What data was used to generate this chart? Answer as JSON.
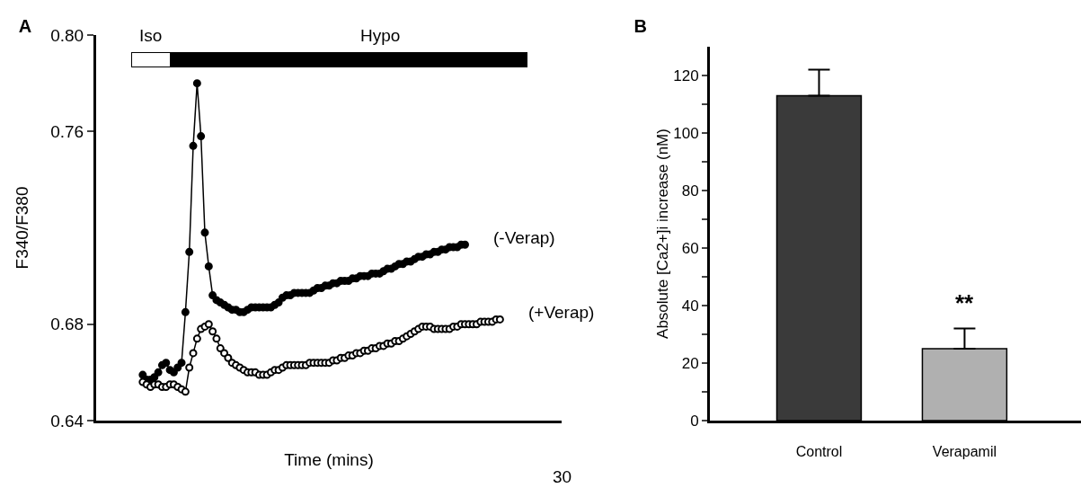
{
  "chart_data": [
    {
      "type": "line",
      "title": "A",
      "xlabel": "Time (mins)",
      "ylabel": "F340/F380",
      "marker": "circle",
      "line_style": "solid",
      "annotations": [
        "Iso",
        "Hypo",
        "30"
      ],
      "categories": [
        null,
        null,
        null,
        null,
        null,
        null,
        null,
        null,
        null,
        null,
        null,
        null,
        null,
        null,
        null,
        null,
        null,
        null,
        null,
        null,
        null,
        null,
        null,
        null,
        null,
        null,
        null,
        null,
        null,
        null,
        null,
        null,
        null,
        null,
        null,
        null,
        null,
        null,
        null,
        null,
        null,
        null,
        null,
        null,
        null,
        null,
        null,
        null,
        null,
        null,
        null,
        null,
        null,
        null,
        null,
        null,
        null,
        null,
        null,
        null,
        null,
        null,
        null,
        null,
        null,
        null,
        null,
        null,
        null,
        null,
        null,
        null,
        null,
        null,
        null,
        null,
        null,
        null,
        null,
        null,
        null,
        null,
        null,
        null,
        null,
        null,
        null,
        null,
        null,
        null,
        null,
        null,
        null
      ],
      "ylim": [
        0.64,
        0.8
      ],
      "yticks": [
        {
          "value": 0.64,
          "label": "0.64"
        },
        {
          "value": 0.68,
          "label": "0.68"
        },
        {
          "value": 0.76,
          "label": "0.76"
        },
        {
          "value": 0.8,
          "label": "0.80"
        }
      ],
      "series": [
        {
          "name": "(-Verap)",
          "color": "#000000",
          "values": [
            0.659,
            0.657,
            0.657,
            0.658,
            0.66,
            0.663,
            0.664,
            0.661,
            0.66,
            0.662,
            0.664,
            0.685,
            0.71,
            0.754,
            0.78,
            0.758,
            0.718,
            0.704,
            0.692,
            0.69,
            0.689,
            0.688,
            0.687,
            0.686,
            0.686,
            0.685,
            0.685,
            0.686,
            0.687,
            0.687,
            0.687,
            0.687,
            0.687,
            0.687,
            0.688,
            0.689,
            0.691,
            0.692,
            0.692,
            0.693,
            0.693,
            0.693,
            0.693,
            0.693,
            0.694,
            0.695,
            0.695,
            0.696,
            0.696,
            0.697,
            0.697,
            0.698,
            0.698,
            0.698,
            0.699,
            0.699,
            0.7,
            0.7,
            0.7,
            0.701,
            0.701,
            0.701,
            0.702,
            0.703,
            0.703,
            0.704,
            0.705,
            0.705,
            0.706,
            0.706,
            0.707,
            0.708,
            0.708,
            0.709,
            0.709,
            0.71,
            0.71,
            0.711,
            0.711,
            0.712,
            0.712,
            0.712,
            0.713,
            0.713,
            null,
            null,
            null,
            null,
            null,
            null,
            null,
            null,
            null
          ]
        },
        {
          "name": "(+Verap)",
          "color": "#000000",
          "values": [
            0.656,
            0.655,
            0.654,
            0.655,
            0.655,
            0.654,
            0.654,
            0.655,
            0.655,
            0.654,
            0.653,
            0.652,
            0.662,
            0.668,
            0.674,
            0.678,
            0.679,
            0.68,
            0.677,
            0.674,
            0.67,
            0.668,
            0.666,
            0.664,
            0.663,
            0.662,
            0.661,
            0.66,
            0.66,
            0.66,
            0.659,
            0.659,
            0.659,
            0.66,
            0.661,
            0.661,
            0.662,
            0.663,
            0.663,
            0.663,
            0.663,
            0.663,
            0.663,
            0.664,
            0.664,
            0.664,
            0.664,
            0.664,
            0.664,
            0.665,
            0.665,
            0.666,
            0.666,
            0.667,
            0.667,
            0.668,
            0.668,
            0.669,
            0.669,
            0.67,
            0.67,
            0.671,
            0.671,
            0.672,
            0.672,
            0.673,
            0.673,
            0.674,
            0.675,
            0.676,
            0.677,
            0.678,
            0.679,
            0.679,
            0.679,
            0.678,
            0.678,
            0.678,
            0.678,
            0.678,
            0.679,
            0.679,
            0.68,
            0.68,
            0.68,
            0.68,
            0.68,
            0.681,
            0.681,
            0.681,
            0.681,
            0.682,
            0.682
          ]
        }
      ]
    },
    {
      "type": "bar",
      "title": "B",
      "ylabel": "Absolute [Ca2+]i increase (nM)",
      "categories": [
        "Control",
        "Verapamil"
      ],
      "values": [
        113,
        25
      ],
      "colors": [
        "#3a3a3a",
        "#b0b0b0"
      ],
      "errors": [
        [
          113,
          122
        ],
        [
          25,
          32
        ]
      ],
      "ylim": [
        0,
        130
      ],
      "yticks": [
        0,
        {
          "value": 10,
          "label": null
        },
        20,
        {
          "value": 30,
          "label": null
        },
        40,
        {
          "value": 50,
          "label": null
        },
        60,
        {
          "value": 70,
          "label": null
        },
        80,
        {
          "value": 90,
          "label": null
        },
        100,
        {
          "value": 110,
          "label": null
        },
        120
      ],
      "annotations": [
        "**"
      ]
    }
  ]
}
